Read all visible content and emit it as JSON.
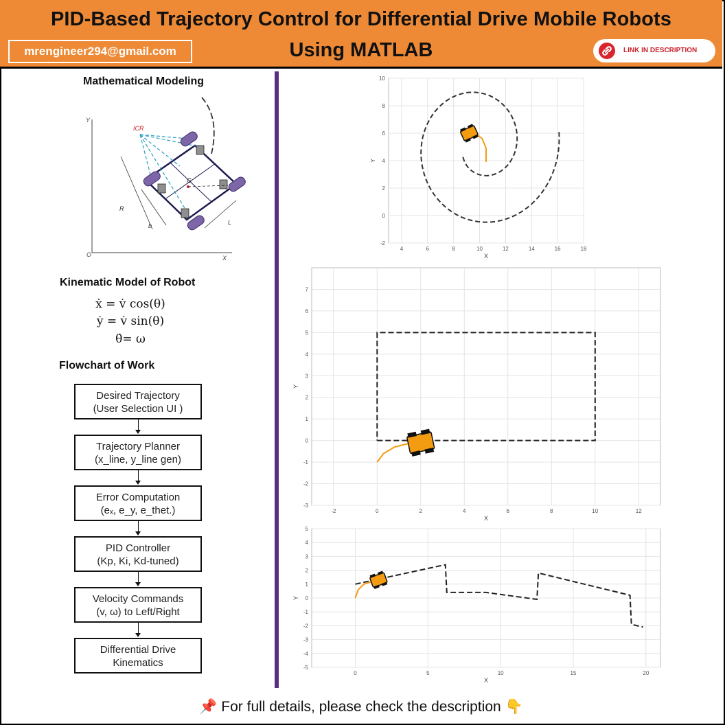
{
  "header": {
    "title_line1": "PID-Based Trajectory Control for Differential Drive Mobile Robots",
    "title_line2": "Using MATLAB",
    "email": "mrengineer294@gmail.com",
    "link_label": "LINK IN DESCRIPTION"
  },
  "left": {
    "modeling_heading": "Mathematical Modeling",
    "kinematic_heading": "Kinematic Model of Robot",
    "equations": [
      "ẋ = v̇ cos(θ)",
      "ẏ = v̇ sin(θ)",
      "θ̇= ω"
    ],
    "flowchart_heading": "Flowchart of Work",
    "flowchart": [
      {
        "line1": "Desired Trajectory",
        "line2": "(User Selection UI )"
      },
      {
        "line1": "Trajectory Planner",
        "line2": "(x_line, y_line gen)"
      },
      {
        "line1": "Error Computation",
        "line2": "(eₓ, e_y, e_thet.)"
      },
      {
        "line1": "PID Controller",
        "line2": "(Kp, Ki, Kd-tuned)"
      },
      {
        "line1": "Velocity Commands",
        "line2": "(v, ω) to Left/Right"
      },
      {
        "line1": "Differential Drive",
        "line2": "Kinematics"
      }
    ],
    "diagram_labels": {
      "y": "Y",
      "x": "X",
      "origin": "O",
      "icr": "ICR",
      "g": "G",
      "r": "R",
      "l": "L",
      "b": "b"
    }
  },
  "footer": {
    "text": "For full details, please check the description"
  },
  "colors": {
    "banner": "#ee8a36",
    "divider": "#5b2d82",
    "robot": "#f39c12",
    "path": "#f39c12"
  },
  "chart_data": [
    {
      "type": "line",
      "name_hint": "spiral",
      "xlabel": "X",
      "ylabel": "Y",
      "xlim": [
        3,
        18
      ],
      "ylim": [
        -2,
        10
      ],
      "xticks": [
        4,
        6,
        8,
        10,
        12,
        14,
        16,
        18
      ],
      "yticks": [
        -2,
        0,
        2,
        4,
        6,
        8,
        10
      ],
      "grid": true
    },
    {
      "type": "line",
      "name_hint": "rectangle",
      "xlabel": "X",
      "ylabel": "Y",
      "xlim": [
        -3,
        13
      ],
      "ylim": [
        -3,
        8
      ],
      "xticks": [
        -2,
        0,
        2,
        4,
        6,
        8,
        10,
        12
      ],
      "yticks": [
        -3,
        -2,
        -1,
        0,
        1,
        2,
        3,
        4,
        5,
        6,
        7
      ],
      "grid": true,
      "reference": {
        "x": [
          0,
          10,
          10,
          0,
          0
        ],
        "y": [
          0,
          0,
          5,
          5,
          0
        ]
      },
      "robot_path": {
        "x": [
          0,
          0.3,
          0.8,
          1.4,
          2.0
        ],
        "y": [
          -1,
          -0.6,
          -0.3,
          -0.15,
          -0.1
        ]
      },
      "robot": {
        "x": 2.0,
        "y": -0.1
      }
    },
    {
      "type": "line",
      "name_hint": "sawtooth",
      "xlabel": "X",
      "ylabel": "Y",
      "xlim": [
        -3,
        21
      ],
      "ylim": [
        -5,
        5
      ],
      "xticks": [
        0,
        5,
        10,
        15,
        20
      ],
      "yticks": [
        -5,
        -4,
        -3,
        -2,
        -1,
        0,
        1,
        2,
        3,
        4,
        5
      ],
      "grid": true,
      "reference": {
        "x": [
          0,
          6.2,
          6.3,
          9,
          12.5,
          12.6,
          18.9,
          19.0,
          19.8
        ],
        "y": [
          1.0,
          2.4,
          0.4,
          0.4,
          -0.1,
          1.8,
          0.2,
          -1.9,
          -2.1
        ]
      },
      "robot_path": {
        "x": [
          0,
          0.2,
          0.6,
          1.2,
          1.6
        ],
        "y": [
          0,
          0.6,
          1.0,
          1.2,
          1.3
        ]
      },
      "robot": {
        "x": 1.6,
        "y": 1.3
      }
    }
  ]
}
